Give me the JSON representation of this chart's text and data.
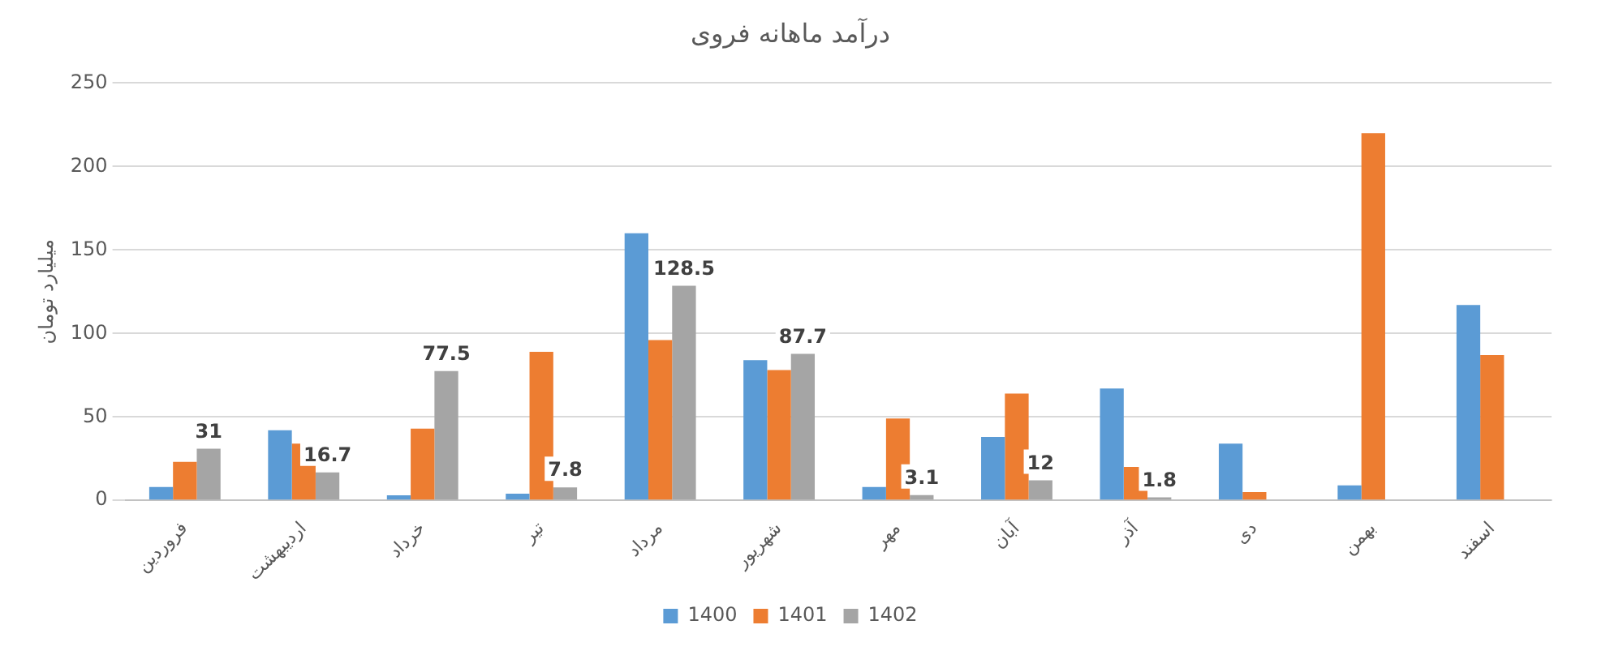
{
  "chart_data": {
    "type": "bar",
    "title": "درآمد ماهانه فروی",
    "ylabel": "میلیارد تومان",
    "categories": [
      "فروردین",
      "اردیبهشت",
      "خرداد",
      "تیر",
      "مرداد",
      "شهریور",
      "مهر",
      "آبان",
      "آذر",
      "دی",
      "بهمن",
      "اسفند"
    ],
    "series": [
      {
        "name": "1400",
        "color": "#5b9bd5",
        "values": [
          8,
          42,
          3,
          4,
          160,
          84,
          8,
          38,
          67,
          34,
          9,
          117
        ]
      },
      {
        "name": "1401",
        "color": "#ed7d31",
        "values": [
          23,
          34,
          43,
          89,
          96,
          78,
          49,
          64,
          20,
          5,
          220,
          87
        ]
      },
      {
        "name": "1402",
        "color": "#a5a5a5",
        "values": [
          31,
          16.7,
          77.5,
          7.8,
          128.5,
          87.7,
          3.1,
          12,
          1.8,
          null,
          null,
          null
        ],
        "value_labels": [
          "31",
          "16.7",
          "77.5",
          "7.8",
          "128.5",
          "87.7",
          "3.1",
          "12",
          "1.8",
          null,
          null,
          null
        ]
      }
    ],
    "ylim": [
      0,
      250
    ],
    "yticks": [
      0,
      50,
      100,
      150,
      200,
      250
    ],
    "grid": "y",
    "legend": "bottom"
  }
}
